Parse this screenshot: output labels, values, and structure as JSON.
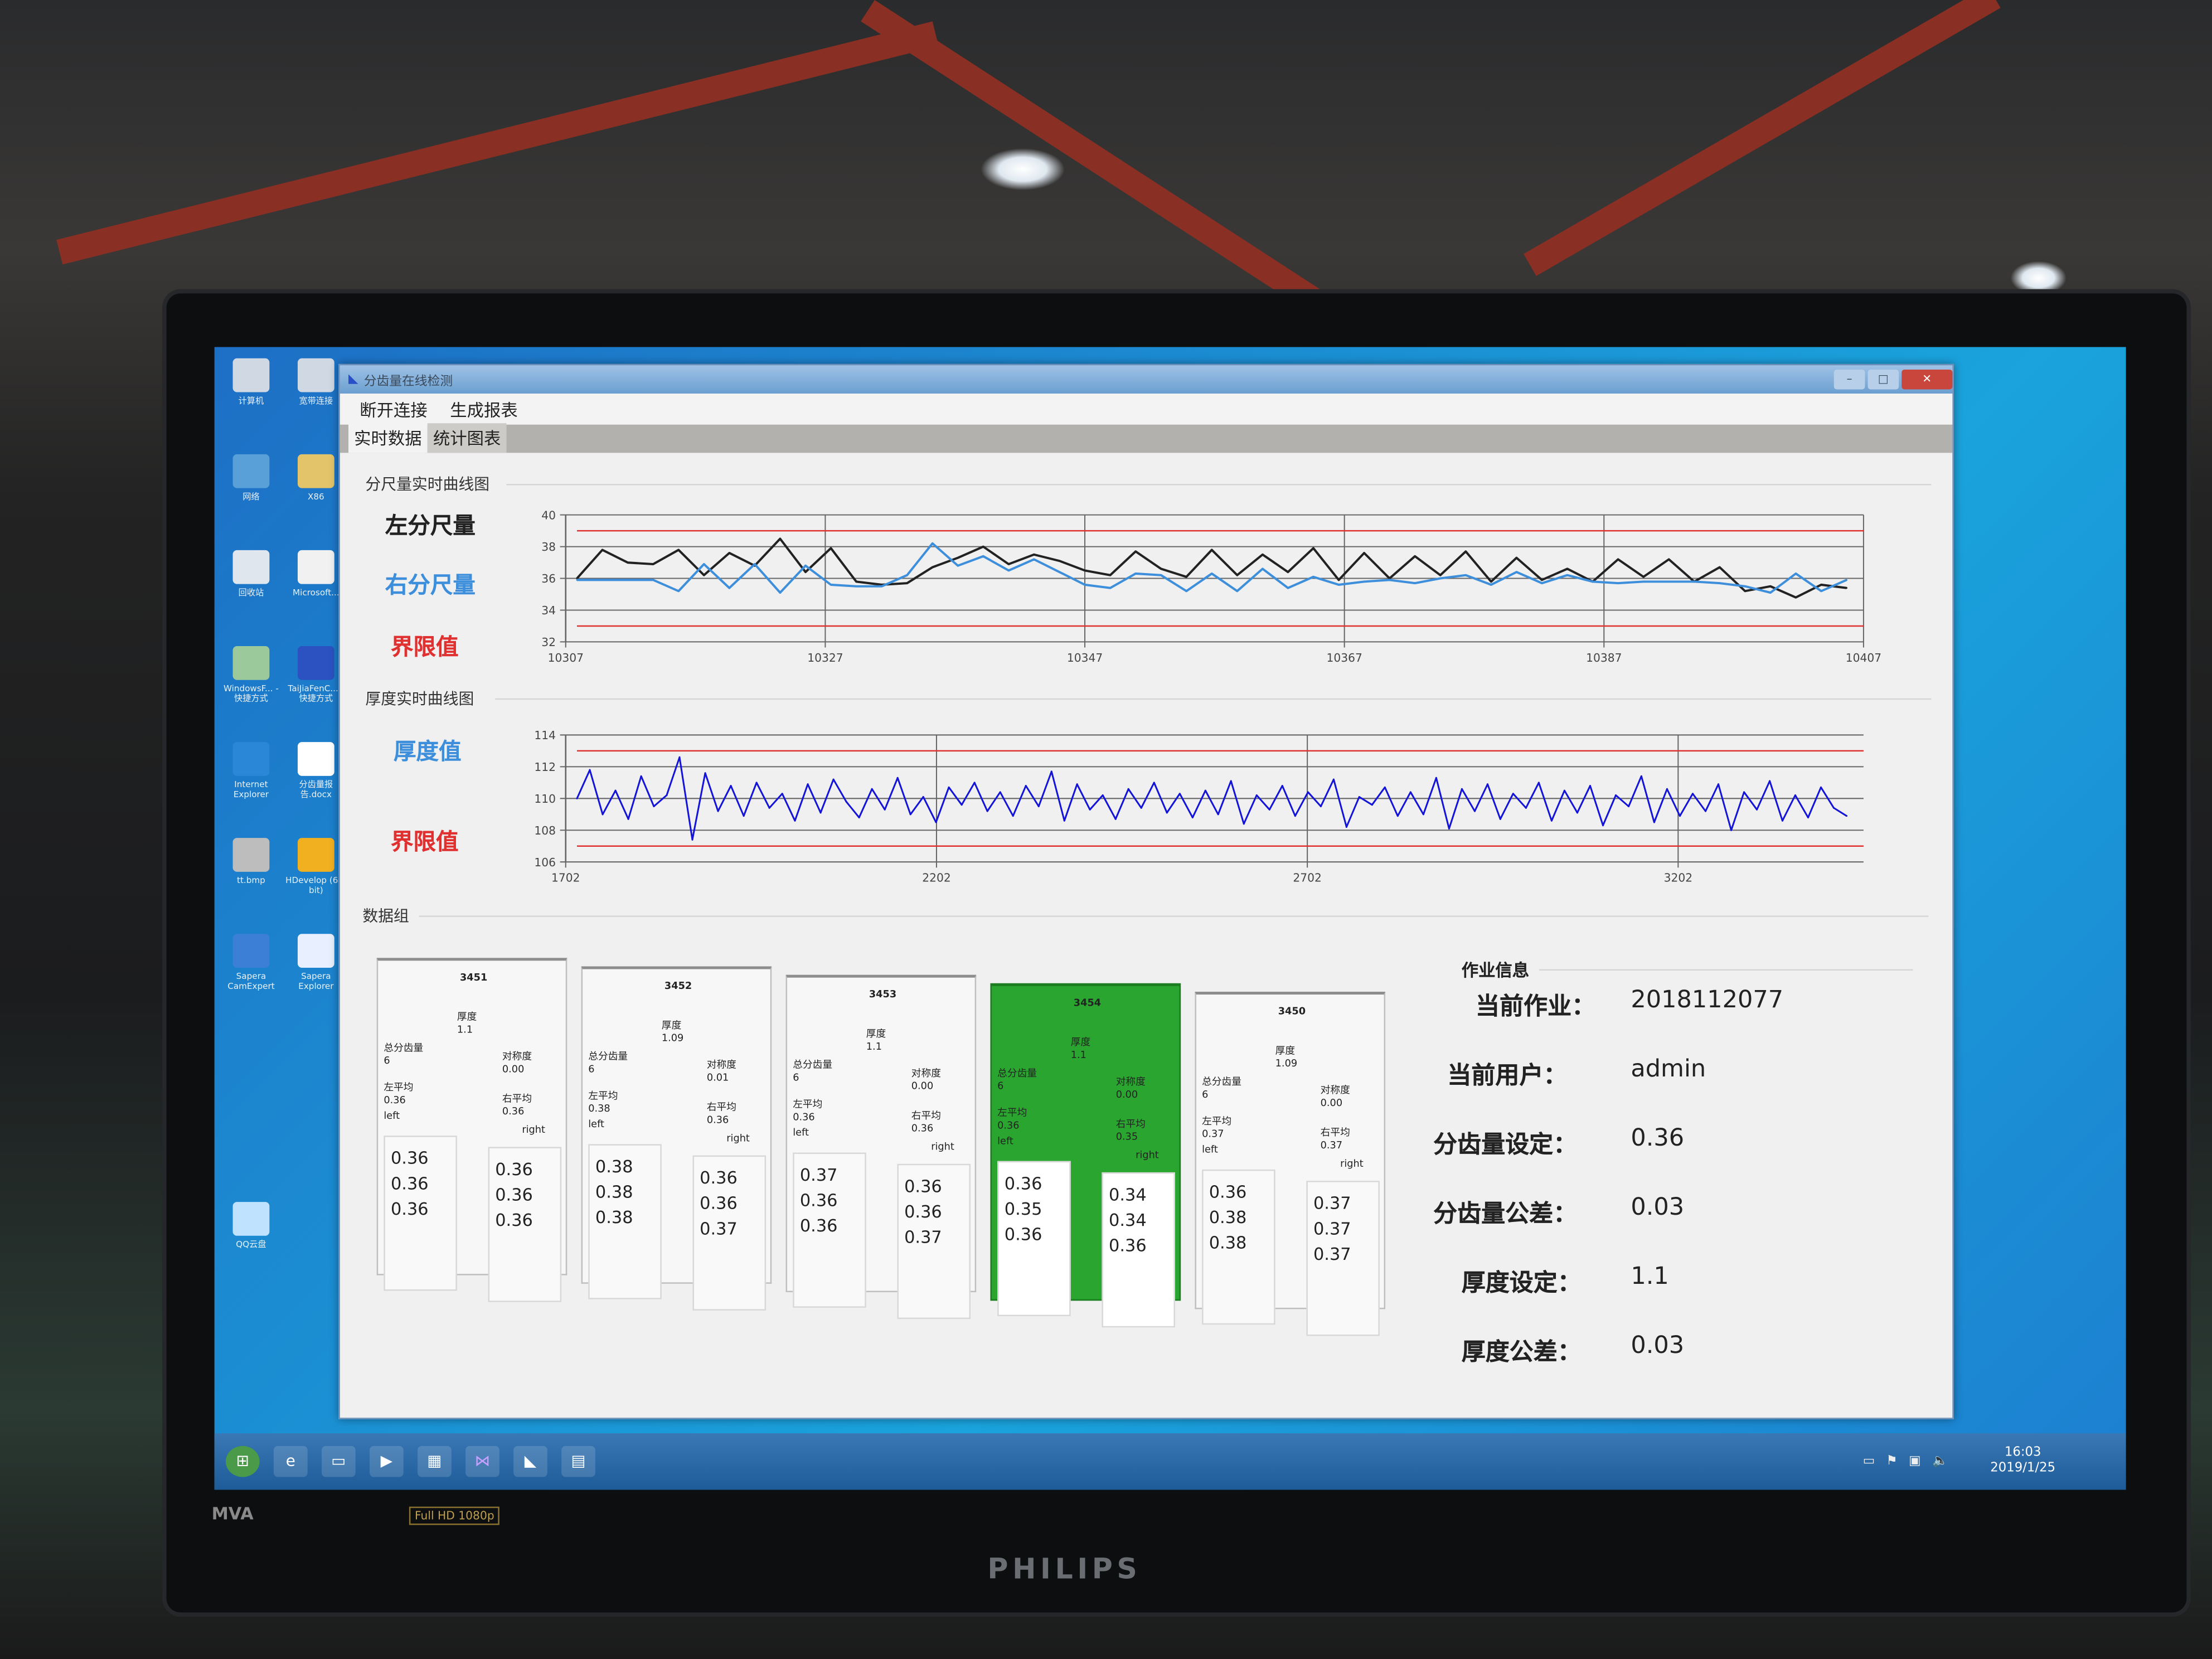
{
  "window": {
    "title": "分齿量在线检测",
    "menu": [
      "断开连接",
      "生成报表"
    ],
    "tabs": [
      "实时数据",
      "统计图表"
    ],
    "active_tab": "实时数据"
  },
  "desktop_icons": [
    {
      "label": "计算机",
      "icon": "computer-icon"
    },
    {
      "label": "宽带连接",
      "icon": "network-connection-icon"
    },
    {
      "label": "网络",
      "icon": "network-icon"
    },
    {
      "label": "X86",
      "icon": "folder-icon"
    },
    {
      "label": "回收站",
      "icon": "recycle-bin-icon"
    },
    {
      "label": "Microsoft...",
      "icon": "file-icon"
    },
    {
      "label": "WindowsF... - 快捷方式",
      "icon": "shortcut-icon"
    },
    {
      "label": "TaiJiaFenC... - 快捷方式",
      "icon": "app-shortcut-icon"
    },
    {
      "label": "Internet Explorer",
      "icon": "ie-icon"
    },
    {
      "label": "分齿量报告.docx",
      "icon": "word-doc-icon"
    },
    {
      "label": "tt.bmp",
      "icon": "bitmap-icon"
    },
    {
      "label": "HDevelop (64-bit)",
      "icon": "hdevelop-icon"
    },
    {
      "label": "Sapera CamExpert",
      "icon": "camera-icon"
    },
    {
      "label": "Sapera Explorer",
      "icon": "search-icon"
    },
    {
      "label": "QQ云盘",
      "icon": "cloud-icon"
    }
  ],
  "sections": {
    "tooth_chart": "分尺量实时曲线图",
    "thickness_chart": "厚度实时曲线图",
    "data_group": "数据组",
    "job_info": "作业信息"
  },
  "chart_data": [
    {
      "type": "line",
      "title": "分尺量实时曲线图",
      "legend": [
        "左分尺量",
        "右分尺量",
        "界限值"
      ],
      "legend_placement": "left",
      "xlim": [
        10307,
        10407
      ],
      "xticks": [
        "10307",
        "10327",
        "10347",
        "10367",
        "10387",
        "10407"
      ],
      "ylim": [
        32,
        40
      ],
      "yticks": [
        "32",
        "34",
        "36",
        "38",
        "40"
      ],
      "grid": true,
      "limits": [
        33,
        39
      ],
      "series": [
        {
          "name": "左分尺量",
          "color": "#222222",
          "values": [
            36,
            37.8,
            37,
            36.9,
            37.8,
            36.2,
            37.6,
            36.8,
            38.5,
            36.4,
            37.9,
            35.8,
            35.6,
            35.7,
            36.7,
            37.3,
            38,
            36.9,
            37.5,
            37.1,
            36.5,
            36.2,
            37.7,
            36.6,
            36.1,
            37.8,
            36.2,
            37.5,
            36.4,
            37.9,
            35.9,
            37.6,
            36,
            37.4,
            36.2,
            37.7,
            35.8,
            37.3,
            35.9,
            36.6,
            35.8,
            37.2,
            36.1,
            37.2,
            35.8,
            36.7,
            35.2,
            35.5,
            34.8,
            35.6,
            35.4
          ]
        },
        {
          "name": "右分尺量",
          "color": "#3d8fdc",
          "values": [
            35.9,
            35.9,
            35.9,
            35.9,
            35.2,
            36.9,
            35.4,
            36.9,
            35.1,
            36.8,
            35.6,
            35.5,
            35.5,
            36.2,
            38.2,
            36.8,
            37.4,
            36.5,
            37.2,
            36.4,
            35.6,
            35.4,
            36.3,
            36.2,
            35.2,
            36.3,
            35.2,
            36.6,
            35.4,
            36.1,
            35.6,
            35.8,
            35.9,
            35.7,
            36.0,
            36.2,
            35.6,
            36.4,
            35.7,
            36.2,
            35.8,
            35.7,
            35.8,
            35.8,
            35.8,
            35.7,
            35.5,
            35.1,
            36.3,
            35.2,
            35.9
          ]
        }
      ],
      "limit_color": "#e03030"
    },
    {
      "type": "line",
      "title": "厚度实时曲线图",
      "legend": [
        "厚度值",
        "界限值"
      ],
      "legend_placement": "left",
      "xlim": [
        1702,
        3452
      ],
      "xticks": [
        "1702",
        "2202",
        "2702",
        "3202"
      ],
      "ylim": [
        106,
        114
      ],
      "yticks": [
        "106",
        "108",
        "110",
        "112",
        "114"
      ],
      "grid": true,
      "limits": [
        107,
        113
      ],
      "series": [
        {
          "name": "厚度值",
          "color": "#1414d8",
          "values": [
            110,
            111.8,
            109,
            110.5,
            108.7,
            111.4,
            109.5,
            110.2,
            112.6,
            107.4,
            111.6,
            109.2,
            110.8,
            108.9,
            111,
            109.4,
            110.3,
            108.6,
            110.9,
            109.1,
            111.2,
            109.8,
            108.8,
            110.6,
            109.3,
            111.3,
            109,
            110.1,
            108.5,
            110.7,
            109.6,
            111,
            109.2,
            110.4,
            108.9,
            110.8,
            109.5,
            111.7,
            108.6,
            110.9,
            109.3,
            110.2,
            108.7,
            110.6,
            109.4,
            111,
            109.1,
            110.3,
            108.8,
            110.5,
            109,
            111.1,
            108.4,
            110.2,
            109.3,
            110.8,
            108.9,
            110.4,
            109.5,
            111.2,
            108.2,
            110.1,
            109.6,
            110.7,
            108.9,
            110.4,
            109,
            111.3,
            108.1,
            110.6,
            109.2,
            110.9,
            108.7,
            110.3,
            109.4,
            111,
            108.6,
            110.5,
            109.1,
            110.8,
            108.3,
            110.2,
            109.5,
            111.4,
            108.5,
            110.6,
            108.9,
            110.3,
            109.2,
            110.9,
            108,
            110.4,
            109.3,
            111.1,
            108.6,
            110.2,
            108.8,
            110.7,
            109.4,
            108.9
          ]
        }
      ],
      "limit_color": "#e03030"
    }
  ],
  "data_groups": {
    "labels": {
      "thickness": "厚度",
      "total": "总分齿量",
      "symmetry": "对称度",
      "left_avg": "左平均",
      "right_avg": "右平均",
      "left": "left",
      "right": "right"
    },
    "highlight_color": "#2aa52f",
    "cards": [
      {
        "id": "3451",
        "thickness": "1.1",
        "total": "6",
        "symmetry": "0.00",
        "left_avg": "0.36",
        "right_avg": "0.36",
        "left_values": [
          "0.36",
          "0.36",
          "0.36"
        ],
        "right_values": [
          "0.36",
          "0.36",
          "0.36"
        ],
        "highlighted": false
      },
      {
        "id": "3452",
        "thickness": "1.09",
        "total": "6",
        "symmetry": "0.01",
        "left_avg": "0.38",
        "right_avg": "0.36",
        "left_values": [
          "0.38",
          "0.38",
          "0.38"
        ],
        "right_values": [
          "0.36",
          "0.36",
          "0.37"
        ],
        "highlighted": false
      },
      {
        "id": "3453",
        "thickness": "1.1",
        "total": "6",
        "symmetry": "0.00",
        "left_avg": "0.36",
        "right_avg": "0.36",
        "left_values": [
          "0.37",
          "0.36",
          "0.36"
        ],
        "right_values": [
          "0.36",
          "0.36",
          "0.37"
        ],
        "highlighted": false
      },
      {
        "id": "3454",
        "thickness": "1.1",
        "total": "6",
        "symmetry": "0.00",
        "left_avg": "0.36",
        "right_avg": "0.35",
        "left_values": [
          "0.36",
          "0.35",
          "0.36"
        ],
        "right_values": [
          "0.34",
          "0.34",
          "0.36"
        ],
        "highlighted": true
      },
      {
        "id": "3450",
        "thickness": "1.09",
        "total": "6",
        "symmetry": "0.00",
        "left_avg": "0.37",
        "right_avg": "0.37",
        "left_values": [
          "0.36",
          "0.38",
          "0.38"
        ],
        "right_values": [
          "0.37",
          "0.37",
          "0.37"
        ],
        "highlighted": false
      }
    ]
  },
  "job_info": {
    "rows": [
      {
        "label": "当前作业：",
        "value": "2018112077"
      },
      {
        "label": "当前用户：",
        "value": "admin"
      },
      {
        "label": "分齿量设定：",
        "value": "0.36"
      },
      {
        "label": "分齿量公差：",
        "value": "0.03"
      },
      {
        "label": "厚度设定：",
        "value": "1.1"
      },
      {
        "label": "厚度公差：",
        "value": "0.03"
      }
    ]
  },
  "taskbar": {
    "time": "16:03",
    "date": "2019/1/25"
  },
  "monitor": {
    "brand": "PHILIPS",
    "model_badge": "MVA",
    "hd_badge": "Full HD 1080p"
  }
}
